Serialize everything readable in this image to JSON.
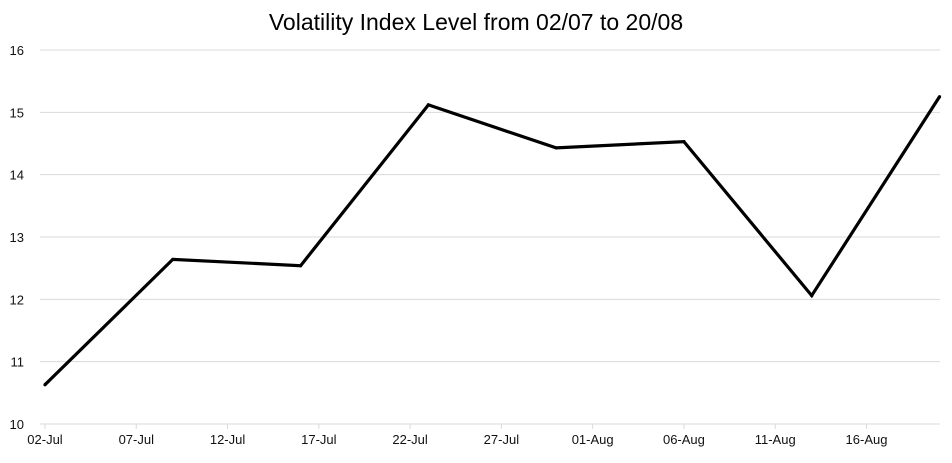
{
  "chart_data": {
    "type": "line",
    "title": "Volatility Index Level from 02/07 to 20/08",
    "xlabel": "",
    "ylabel": "",
    "x_type": "date",
    "x_range": [
      "2024-07-02",
      "2024-08-20"
    ],
    "x_ticks": [
      {
        "date": "2024-07-02",
        "label": "02-Jul"
      },
      {
        "date": "2024-07-07",
        "label": "07-Jul"
      },
      {
        "date": "2024-07-12",
        "label": "12-Jul"
      },
      {
        "date": "2024-07-17",
        "label": "17-Jul"
      },
      {
        "date": "2024-07-22",
        "label": "22-Jul"
      },
      {
        "date": "2024-07-27",
        "label": "27-Jul"
      },
      {
        "date": "2024-08-01",
        "label": "01-Aug"
      },
      {
        "date": "2024-08-06",
        "label": "06-Aug"
      },
      {
        "date": "2024-08-11",
        "label": "11-Aug"
      },
      {
        "date": "2024-08-16",
        "label": "16-Aug"
      }
    ],
    "ylim": [
      10,
      16
    ],
    "y_ticks": [
      10,
      11,
      12,
      13,
      14,
      15,
      16
    ],
    "grid": true,
    "legend": "none",
    "series": [
      {
        "color": "#000000",
        "points": [
          {
            "x": "2024-07-02",
            "y": 10.63
          },
          {
            "x": "2024-07-09",
            "y": 12.64
          },
          {
            "x": "2024-07-16",
            "y": 12.54
          },
          {
            "x": "2024-07-23",
            "y": 15.12
          },
          {
            "x": "2024-07-30",
            "y": 14.43
          },
          {
            "x": "2024-08-06",
            "y": 14.53
          },
          {
            "x": "2024-08-13",
            "y": 12.06
          },
          {
            "x": "2024-08-20",
            "y": 15.25
          }
        ]
      }
    ]
  }
}
